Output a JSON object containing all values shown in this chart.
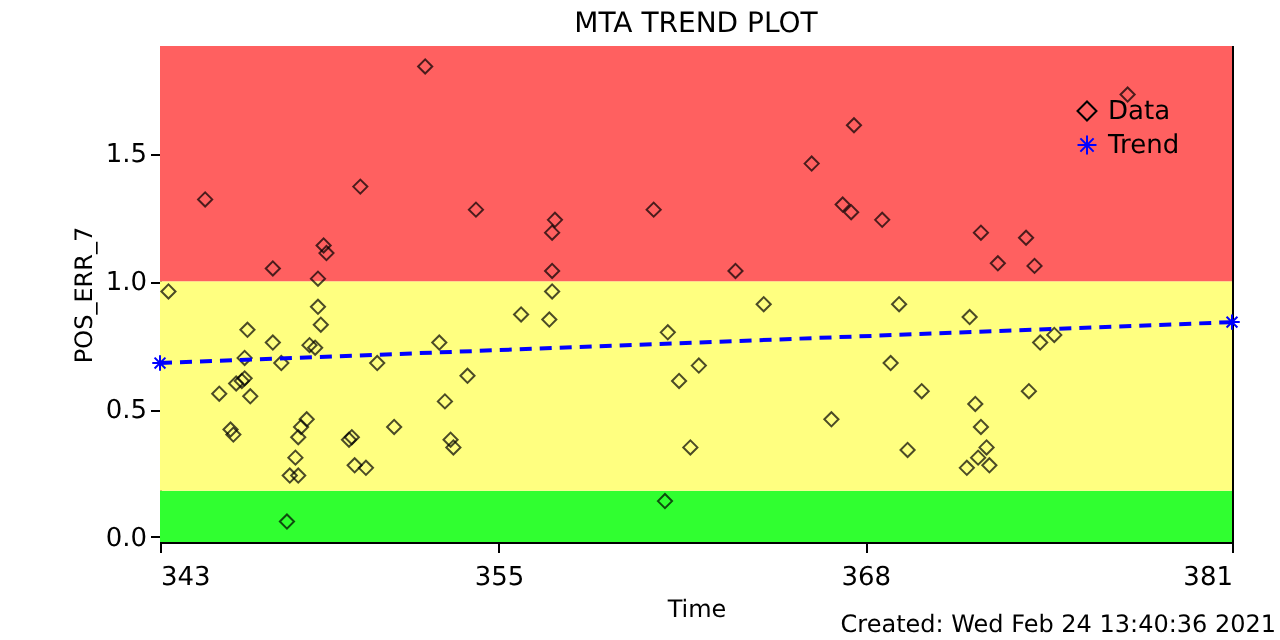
{
  "chart_data": {
    "type": "scatter",
    "title": "MTA TREND PLOT",
    "xlabel": "Time",
    "ylabel": "POS_ERR_7",
    "annotations": [
      "Created: Wed Feb 24 13:40:36 2021"
    ],
    "xlim": [
      343,
      381
    ],
    "ylim": [
      -0.02,
      1.92
    ],
    "xticks": [
      343,
      355,
      368,
      381
    ],
    "yticks": [
      {
        "value": 0,
        "label": "0.0"
      },
      {
        "value": 0.5,
        "label": "0.5"
      },
      {
        "value": 1.0,
        "label": "1.0"
      },
      {
        "value": 1.5,
        "label": "1.5"
      }
    ],
    "grid": false,
    "legend": "top right",
    "bands": [
      {
        "axis": "y",
        "from": -0.02,
        "to": 0.18,
        "color": "#30ff30"
      },
      {
        "axis": "y",
        "from": 0.18,
        "to": 1.0,
        "color": "#ffff80"
      },
      {
        "axis": "y",
        "from": 1.0,
        "to": 1.92,
        "color": "#ff6060"
      }
    ],
    "series": [
      {
        "name": "Data",
        "color": "#000000",
        "marker": "diamond",
        "x": [
          343.3,
          344.6,
          347.0,
          348.6,
          348.6,
          348.7,
          346.1,
          348.8,
          348.9,
          350.1,
          352.4,
          354.2,
          355.8,
          356.8,
          357.0,
          356.9,
          356.9,
          356.9,
          360.5,
          363.4,
          364.4,
          361.0,
          366.1,
          367.6,
          367.2,
          367.5,
          368.6,
          369.2,
          371.7,
          372.1,
          372.7,
          373.7,
          374.0,
          377.3,
          361.4,
          362.1,
          361.8,
          360.9,
          368.9,
          370.0,
          366.8,
          369.5,
          371.9,
          372.1,
          372.3,
          372.0,
          371.6,
          372.4,
          373.8,
          374.2,
          374.7,
          345.1,
          345.5,
          345.6,
          345.7,
          345.9,
          346.0,
          346.0,
          346.2,
          347.0,
          347.3,
          347.5,
          347.6,
          347.9,
          347.8,
          347.9,
          348.0,
          348.2,
          348.3,
          348.5,
          349.7,
          349.8,
          349.9,
          350.3,
          350.7,
          351.3,
          352.9,
          353.1,
          353.3,
          353.4,
          353.9
        ],
        "values": [
          0.96,
          1.32,
          1.05,
          1.01,
          0.9,
          0.83,
          0.81,
          1.14,
          1.11,
          1.37,
          1.84,
          1.28,
          0.87,
          0.85,
          1.24,
          1.19,
          1.04,
          0.96,
          1.28,
          1.04,
          0.91,
          0.8,
          1.46,
          1.61,
          1.3,
          1.27,
          1.24,
          0.91,
          0.86,
          1.19,
          1.07,
          1.17,
          1.06,
          1.73,
          0.61,
          0.67,
          0.35,
          0.14,
          0.68,
          0.57,
          0.46,
          0.34,
          0.52,
          0.43,
          0.35,
          0.31,
          0.27,
          0.28,
          0.57,
          0.76,
          0.79,
          0.56,
          0.42,
          0.4,
          0.6,
          0.61,
          0.62,
          0.7,
          0.55,
          0.76,
          0.68,
          0.06,
          0.24,
          0.24,
          0.31,
          0.39,
          0.43,
          0.46,
          0.75,
          0.74,
          0.38,
          0.39,
          0.28,
          0.27,
          0.68,
          0.43,
          0.76,
          0.53,
          0.38,
          0.35,
          0.63
        ]
      },
      {
        "name": "Trend",
        "type": "line",
        "color": "#0000ff",
        "marker": "cross",
        "line_style": "dashed",
        "x": [
          343,
          381
        ],
        "values": [
          0.68,
          0.84
        ]
      }
    ]
  }
}
